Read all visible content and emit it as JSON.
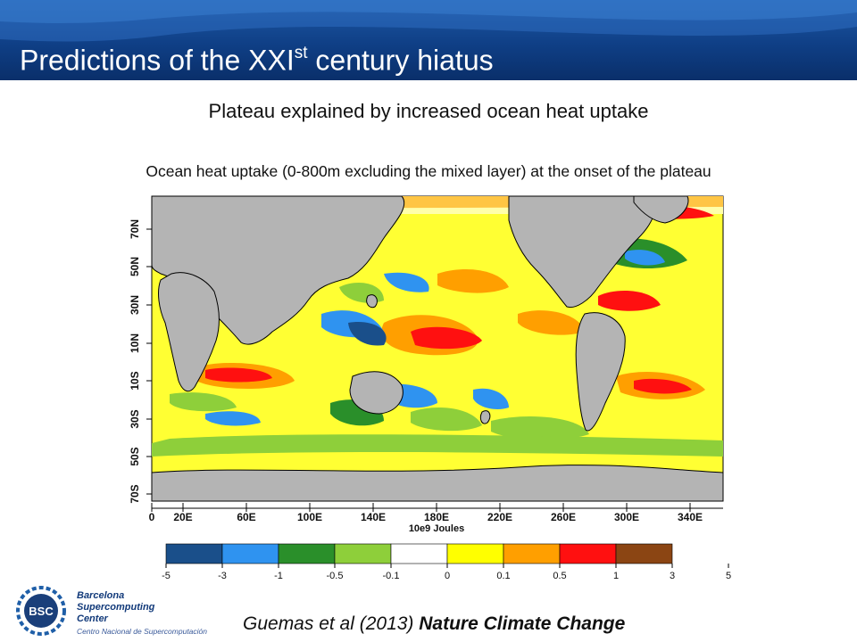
{
  "slide": {
    "title": "Predictions of the XXI",
    "title_sup": "st",
    "title_tail": " century hiatus",
    "subtitle": "Plateau explained by increased ocean heat uptake",
    "caption": "Ocean heat uptake (0-800m excluding the mixed layer) at the onset of the plateau",
    "citation_authors": "Guemas et al (2013) ",
    "citation_journal": "Nature Climate Change"
  },
  "map": {
    "lat_labels": [
      "70N",
      "50N",
      "30N",
      "10N",
      "10S",
      "30S",
      "50S",
      "70S"
    ],
    "lon_labels": [
      "0",
      "20E",
      "60E",
      "100E",
      "140E",
      "180E",
      "220E",
      "260E",
      "300E",
      "340E"
    ],
    "units_label": "10e9 Joules"
  },
  "legend": {
    "ticks": [
      "-5",
      "-3",
      "-1",
      "-0.5",
      "-0.1",
      "0",
      "0.1",
      "0.5",
      "1",
      "3",
      "5"
    ],
    "colors": [
      "#1a4f8a",
      "#2f93f0",
      "#2a8f2a",
      "#8ecf3a",
      "#ffffff",
      "#ffff00",
      "#ff9f00",
      "#ff1010",
      "#8b4513"
    ]
  },
  "logo": {
    "line1": "Barcelona",
    "line2": "Supercomputing",
    "line3": "Center",
    "line4": "Centro Nacional de Supercomputación",
    "badge": "BSC"
  }
}
